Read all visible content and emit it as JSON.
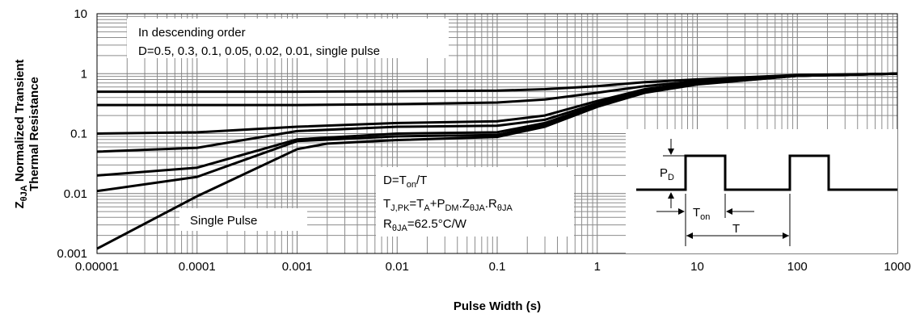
{
  "chart_data": {
    "type": "line",
    "xlabel": "Pulse Width (s)",
    "ylabel": "ZθJA Normalized Transient Thermal Resistance",
    "ylabel_parts": {
      "base": "Z",
      "sub": "θJA",
      "rest": " Normalized Transient",
      "line2": "Thermal Resistance"
    },
    "x_scale": "log",
    "y_scale": "log",
    "xlim": [
      1e-05,
      1000
    ],
    "ylim": [
      0.001,
      10
    ],
    "x_ticks": [
      "0.00001",
      "0.0001",
      "0.001",
      "0.01",
      "0.1",
      "1",
      "10",
      "100",
      "1000"
    ],
    "y_ticks": [
      "10",
      "1",
      "0.1",
      "0.01",
      "0.001"
    ],
    "grid": true,
    "legend_note": {
      "line1": "In descending order",
      "line2": "D=0.5, 0.3, 0.1, 0.05, 0.02, 0.01, single pulse"
    },
    "single_pulse_label": "Single Pulse",
    "formula": {
      "line1": {
        "a": "D=T",
        "sub": "on",
        "b": "/T"
      },
      "line2": {
        "a": "T",
        "a_sub": "J,PK",
        "b": "=T",
        "b_sub": "A",
        "c": "+P",
        "c_sub": "DM",
        "d": ".Z",
        "d_sub": "θJA",
        "e": ".R",
        "e_sub": "θJA"
      },
      "line3": {
        "a": "R",
        "a_sub": "θJA",
        "b": "=62.5°C/W"
      }
    },
    "inset": {
      "pd": {
        "a": "P",
        "sub": "D"
      },
      "ton": {
        "a": "T",
        "sub": "on"
      },
      "t": "T"
    },
    "series": [
      {
        "x": [
          1e-05,
          0.001,
          0.01,
          0.1,
          0.3,
          1,
          3,
          10,
          100,
          1000
        ],
        "y": [
          0.5,
          0.5,
          0.51,
          0.52,
          0.55,
          0.62,
          0.72,
          0.8,
          0.95,
          1.0
        ]
      },
      {
        "x": [
          1e-05,
          0.001,
          0.01,
          0.1,
          0.3,
          1,
          3,
          10,
          100,
          1000
        ],
        "y": [
          0.3,
          0.3,
          0.31,
          0.33,
          0.37,
          0.48,
          0.62,
          0.75,
          0.93,
          1.0
        ]
      },
      {
        "x": [
          1e-05,
          0.0001,
          0.001,
          0.01,
          0.1,
          0.3,
          1,
          3,
          10,
          100,
          1000
        ],
        "y": [
          0.1,
          0.105,
          0.13,
          0.15,
          0.16,
          0.2,
          0.35,
          0.55,
          0.72,
          0.92,
          1.0
        ]
      },
      {
        "x": [
          1e-05,
          0.0001,
          0.001,
          0.01,
          0.1,
          0.3,
          1,
          3,
          10,
          100,
          1000
        ],
        "y": [
          0.05,
          0.058,
          0.11,
          0.13,
          0.135,
          0.17,
          0.32,
          0.52,
          0.7,
          0.92,
          1.0
        ]
      },
      {
        "x": [
          1e-05,
          0.0001,
          0.001,
          0.01,
          0.1,
          0.3,
          1,
          3,
          10,
          100,
          1000
        ],
        "y": [
          0.02,
          0.027,
          0.08,
          0.1,
          0.105,
          0.15,
          0.3,
          0.5,
          0.68,
          0.92,
          1.0
        ]
      },
      {
        "x": [
          1e-05,
          0.0001,
          0.001,
          0.01,
          0.1,
          0.3,
          1,
          3,
          10,
          100,
          1000
        ],
        "y": [
          0.011,
          0.019,
          0.075,
          0.09,
          0.095,
          0.14,
          0.29,
          0.49,
          0.67,
          0.92,
          1.0
        ]
      },
      {
        "x": [
          1e-05,
          0.0001,
          0.001,
          0.002,
          0.01,
          0.1,
          0.3,
          1,
          3,
          10,
          100,
          1000
        ],
        "y": [
          0.0012,
          0.009,
          0.055,
          0.068,
          0.078,
          0.088,
          0.13,
          0.28,
          0.48,
          0.66,
          0.92,
          1.0
        ]
      }
    ]
  }
}
